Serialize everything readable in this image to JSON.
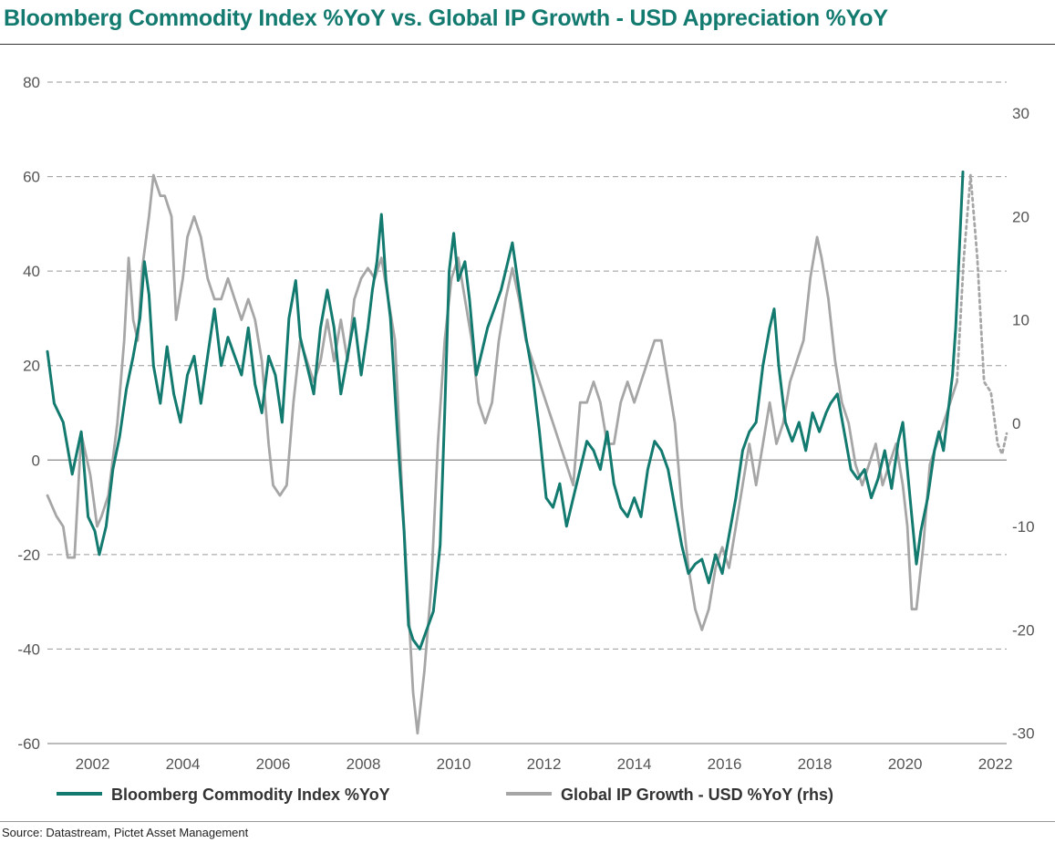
{
  "chart_data": {
    "type": "line",
    "title": "Bloomberg Commodity Index %YoY vs. Global IP Growth - USD Appreciation %YoY",
    "source": "Source: Datastream, Pictet Asset Management",
    "x_ticks": [
      "2002",
      "2004",
      "2006",
      "2008",
      "2010",
      "2012",
      "2014",
      "2016",
      "2018",
      "2020",
      "2022"
    ],
    "xlim": [
      2001.0,
      2022.25
    ],
    "y_left": {
      "ticks": [
        "80",
        "60",
        "40",
        "20",
        "0",
        "-20",
        "-40",
        "-60"
      ],
      "ylim": [
        -60,
        80
      ]
    },
    "y_right": {
      "ticks": [
        "30",
        "20",
        "10",
        "0",
        "-10",
        "-20",
        "-30"
      ],
      "ylim": [
        -31,
        33
      ]
    },
    "grid": true,
    "legend_position": "bottom",
    "colors": {
      "title": "#137a70",
      "commodity": "#137a70",
      "ip": "#a6a6a6",
      "grid": "#9a9a9a"
    },
    "series": [
      {
        "name": "Bloomberg Commodity Index %YoY",
        "axis": "left",
        "style": "solid",
        "points": [
          [
            2001.0,
            23
          ],
          [
            2001.15,
            12
          ],
          [
            2001.35,
            8
          ],
          [
            2001.55,
            -3
          ],
          [
            2001.75,
            6
          ],
          [
            2001.9,
            -12
          ],
          [
            2002.05,
            -15
          ],
          [
            2002.15,
            -20
          ],
          [
            2002.3,
            -14
          ],
          [
            2002.45,
            -2
          ],
          [
            2002.6,
            5
          ],
          [
            2002.75,
            15
          ],
          [
            2002.9,
            22
          ],
          [
            2003.05,
            30
          ],
          [
            2003.15,
            42
          ],
          [
            2003.25,
            35
          ],
          [
            2003.35,
            20
          ],
          [
            2003.5,
            12
          ],
          [
            2003.65,
            24
          ],
          [
            2003.8,
            14
          ],
          [
            2003.95,
            8
          ],
          [
            2004.1,
            18
          ],
          [
            2004.25,
            22
          ],
          [
            2004.4,
            12
          ],
          [
            2004.55,
            22
          ],
          [
            2004.7,
            32
          ],
          [
            2004.85,
            20
          ],
          [
            2005.0,
            26
          ],
          [
            2005.15,
            22
          ],
          [
            2005.3,
            18
          ],
          [
            2005.45,
            28
          ],
          [
            2005.6,
            16
          ],
          [
            2005.75,
            10
          ],
          [
            2005.9,
            22
          ],
          [
            2006.05,
            18
          ],
          [
            2006.2,
            8
          ],
          [
            2006.35,
            30
          ],
          [
            2006.5,
            38
          ],
          [
            2006.6,
            26
          ],
          [
            2006.75,
            20
          ],
          [
            2006.9,
            14
          ],
          [
            2007.05,
            28
          ],
          [
            2007.2,
            36
          ],
          [
            2007.35,
            28
          ],
          [
            2007.5,
            14
          ],
          [
            2007.65,
            22
          ],
          [
            2007.8,
            30
          ],
          [
            2007.95,
            18
          ],
          [
            2008.1,
            28
          ],
          [
            2008.2,
            36
          ],
          [
            2008.3,
            42
          ],
          [
            2008.4,
            52
          ],
          [
            2008.5,
            38
          ],
          [
            2008.6,
            30
          ],
          [
            2008.75,
            6
          ],
          [
            2008.9,
            -15
          ],
          [
            2009.0,
            -35
          ],
          [
            2009.1,
            -38
          ],
          [
            2009.25,
            -40
          ],
          [
            2009.4,
            -36
          ],
          [
            2009.55,
            -32
          ],
          [
            2009.7,
            -18
          ],
          [
            2009.8,
            10
          ],
          [
            2009.9,
            40
          ],
          [
            2010.0,
            48
          ],
          [
            2010.1,
            38
          ],
          [
            2010.25,
            42
          ],
          [
            2010.35,
            34
          ],
          [
            2010.5,
            18
          ],
          [
            2010.6,
            22
          ],
          [
            2010.75,
            28
          ],
          [
            2010.9,
            32
          ],
          [
            2011.05,
            36
          ],
          [
            2011.2,
            42
          ],
          [
            2011.3,
            46
          ],
          [
            2011.45,
            36
          ],
          [
            2011.6,
            26
          ],
          [
            2011.75,
            18
          ],
          [
            2011.9,
            6
          ],
          [
            2012.05,
            -8
          ],
          [
            2012.2,
            -10
          ],
          [
            2012.35,
            -5
          ],
          [
            2012.5,
            -14
          ],
          [
            2012.65,
            -8
          ],
          [
            2012.8,
            -2
          ],
          [
            2012.95,
            4
          ],
          [
            2013.1,
            2
          ],
          [
            2013.25,
            -2
          ],
          [
            2013.4,
            6
          ],
          [
            2013.55,
            -5
          ],
          [
            2013.7,
            -10
          ],
          [
            2013.85,
            -12
          ],
          [
            2014.0,
            -8
          ],
          [
            2014.15,
            -12
          ],
          [
            2014.3,
            -2
          ],
          [
            2014.45,
            4
          ],
          [
            2014.6,
            2
          ],
          [
            2014.75,
            -2
          ],
          [
            2014.9,
            -10
          ],
          [
            2015.05,
            -18
          ],
          [
            2015.2,
            -24
          ],
          [
            2015.35,
            -22
          ],
          [
            2015.5,
            -21
          ],
          [
            2015.65,
            -26
          ],
          [
            2015.8,
            -20
          ],
          [
            2015.95,
            -24
          ],
          [
            2016.1,
            -16
          ],
          [
            2016.25,
            -8
          ],
          [
            2016.4,
            2
          ],
          [
            2016.55,
            6
          ],
          [
            2016.7,
            8
          ],
          [
            2016.85,
            20
          ],
          [
            2017.0,
            28
          ],
          [
            2017.1,
            32
          ],
          [
            2017.2,
            20
          ],
          [
            2017.35,
            8
          ],
          [
            2017.5,
            4
          ],
          [
            2017.65,
            8
          ],
          [
            2017.8,
            2
          ],
          [
            2017.95,
            10
          ],
          [
            2018.1,
            6
          ],
          [
            2018.25,
            10
          ],
          [
            2018.35,
            12
          ],
          [
            2018.5,
            14
          ],
          [
            2018.65,
            6
          ],
          [
            2018.8,
            -2
          ],
          [
            2018.95,
            -4
          ],
          [
            2019.1,
            -2
          ],
          [
            2019.25,
            -8
          ],
          [
            2019.4,
            -4
          ],
          [
            2019.55,
            2
          ],
          [
            2019.7,
            -6
          ],
          [
            2019.85,
            4
          ],
          [
            2019.95,
            8
          ],
          [
            2020.05,
            -2
          ],
          [
            2020.15,
            -12
          ],
          [
            2020.25,
            -22
          ],
          [
            2020.35,
            -15
          ],
          [
            2020.5,
            -8
          ],
          [
            2020.65,
            2
          ],
          [
            2020.75,
            6
          ],
          [
            2020.85,
            2
          ],
          [
            2020.95,
            10
          ],
          [
            2021.05,
            18
          ],
          [
            2021.12,
            28
          ],
          [
            2021.2,
            44
          ],
          [
            2021.28,
            61
          ]
        ]
      },
      {
        "name": "Global IP Growth - USD %YoY (rhs)",
        "axis": "right",
        "style": "solid",
        "points": [
          [
            2001.0,
            -7
          ],
          [
            2001.2,
            -9
          ],
          [
            2001.35,
            -10
          ],
          [
            2001.45,
            -13
          ],
          [
            2001.6,
            -13
          ],
          [
            2001.75,
            -1
          ],
          [
            2001.95,
            -5
          ],
          [
            2002.1,
            -10
          ],
          [
            2002.2,
            -9
          ],
          [
            2002.35,
            -7
          ],
          [
            2002.55,
            0
          ],
          [
            2002.7,
            8
          ],
          [
            2002.8,
            16
          ],
          [
            2002.9,
            10
          ],
          [
            2003.0,
            8
          ],
          [
            2003.1,
            15
          ],
          [
            2003.25,
            20
          ],
          [
            2003.35,
            24
          ],
          [
            2003.5,
            22
          ],
          [
            2003.6,
            22
          ],
          [
            2003.75,
            20
          ],
          [
            2003.85,
            10
          ],
          [
            2004.0,
            14
          ],
          [
            2004.1,
            18
          ],
          [
            2004.25,
            20
          ],
          [
            2004.4,
            18
          ],
          [
            2004.55,
            14
          ],
          [
            2004.7,
            12
          ],
          [
            2004.85,
            12
          ],
          [
            2005.0,
            14
          ],
          [
            2005.15,
            12
          ],
          [
            2005.3,
            10
          ],
          [
            2005.45,
            12
          ],
          [
            2005.6,
            10
          ],
          [
            2005.75,
            6
          ],
          [
            2005.9,
            -2
          ],
          [
            2006.0,
            -6
          ],
          [
            2006.15,
            -7
          ],
          [
            2006.3,
            -6
          ],
          [
            2006.45,
            2
          ],
          [
            2006.6,
            8
          ],
          [
            2006.75,
            6
          ],
          [
            2006.9,
            4
          ],
          [
            2007.05,
            6
          ],
          [
            2007.2,
            10
          ],
          [
            2007.35,
            6
          ],
          [
            2007.5,
            10
          ],
          [
            2007.65,
            6
          ],
          [
            2007.8,
            12
          ],
          [
            2007.95,
            14
          ],
          [
            2008.1,
            15
          ],
          [
            2008.25,
            14
          ],
          [
            2008.4,
            16
          ],
          [
            2008.55,
            12
          ],
          [
            2008.7,
            8
          ],
          [
            2008.85,
            -6
          ],
          [
            2009.0,
            -18
          ],
          [
            2009.1,
            -26
          ],
          [
            2009.2,
            -30
          ],
          [
            2009.35,
            -24
          ],
          [
            2009.5,
            -16
          ],
          [
            2009.65,
            -2
          ],
          [
            2009.8,
            8
          ],
          [
            2009.95,
            14
          ],
          [
            2010.1,
            16
          ],
          [
            2010.25,
            12
          ],
          [
            2010.4,
            8
          ],
          [
            2010.55,
            2
          ],
          [
            2010.7,
            0
          ],
          [
            2010.85,
            2
          ],
          [
            2011.0,
            8
          ],
          [
            2011.15,
            12
          ],
          [
            2011.3,
            15
          ],
          [
            2011.45,
            12
          ],
          [
            2011.6,
            8
          ],
          [
            2011.75,
            6
          ],
          [
            2011.9,
            4
          ],
          [
            2012.05,
            2
          ],
          [
            2012.2,
            0
          ],
          [
            2012.35,
            -2
          ],
          [
            2012.5,
            -4
          ],
          [
            2012.65,
            -6
          ],
          [
            2012.8,
            2
          ],
          [
            2012.95,
            2
          ],
          [
            2013.1,
            4
          ],
          [
            2013.25,
            2
          ],
          [
            2013.4,
            -2
          ],
          [
            2013.55,
            -2
          ],
          [
            2013.7,
            2
          ],
          [
            2013.85,
            4
          ],
          [
            2014.0,
            2
          ],
          [
            2014.15,
            4
          ],
          [
            2014.3,
            6
          ],
          [
            2014.45,
            8
          ],
          [
            2014.6,
            8
          ],
          [
            2014.75,
            4
          ],
          [
            2014.9,
            0
          ],
          [
            2015.05,
            -8
          ],
          [
            2015.2,
            -14
          ],
          [
            2015.35,
            -18
          ],
          [
            2015.5,
            -20
          ],
          [
            2015.65,
            -18
          ],
          [
            2015.8,
            -14
          ],
          [
            2015.95,
            -12
          ],
          [
            2016.1,
            -14
          ],
          [
            2016.25,
            -10
          ],
          [
            2016.4,
            -6
          ],
          [
            2016.55,
            -2
          ],
          [
            2016.7,
            -6
          ],
          [
            2016.85,
            -2
          ],
          [
            2017.0,
            2
          ],
          [
            2017.15,
            -2
          ],
          [
            2017.3,
            0
          ],
          [
            2017.45,
            4
          ],
          [
            2017.6,
            6
          ],
          [
            2017.75,
            8
          ],
          [
            2017.9,
            14
          ],
          [
            2018.05,
            18
          ],
          [
            2018.15,
            16
          ],
          [
            2018.3,
            12
          ],
          [
            2018.45,
            6
          ],
          [
            2018.6,
            2
          ],
          [
            2018.75,
            0
          ],
          [
            2018.9,
            -4
          ],
          [
            2019.05,
            -6
          ],
          [
            2019.2,
            -4
          ],
          [
            2019.35,
            -2
          ],
          [
            2019.5,
            -6
          ],
          [
            2019.65,
            -4
          ],
          [
            2019.8,
            -2
          ],
          [
            2019.95,
            -6
          ],
          [
            2020.05,
            -10
          ],
          [
            2020.15,
            -18
          ],
          [
            2020.25,
            -18
          ],
          [
            2020.4,
            -12
          ],
          [
            2020.55,
            -4
          ],
          [
            2020.7,
            -2
          ],
          [
            2020.85,
            0
          ],
          [
            2021.0,
            2
          ],
          [
            2021.15,
            4
          ]
        ]
      },
      {
        "name": "",
        "axis": "right",
        "style": "dotted",
        "points": [
          [
            2021.15,
            4
          ],
          [
            2021.3,
            16
          ],
          [
            2021.45,
            24
          ],
          [
            2021.6,
            16
          ],
          [
            2021.75,
            4
          ],
          [
            2021.9,
            3
          ],
          [
            2022.05,
            -2
          ],
          [
            2022.15,
            -3
          ],
          [
            2022.25,
            -1
          ]
        ]
      }
    ]
  }
}
